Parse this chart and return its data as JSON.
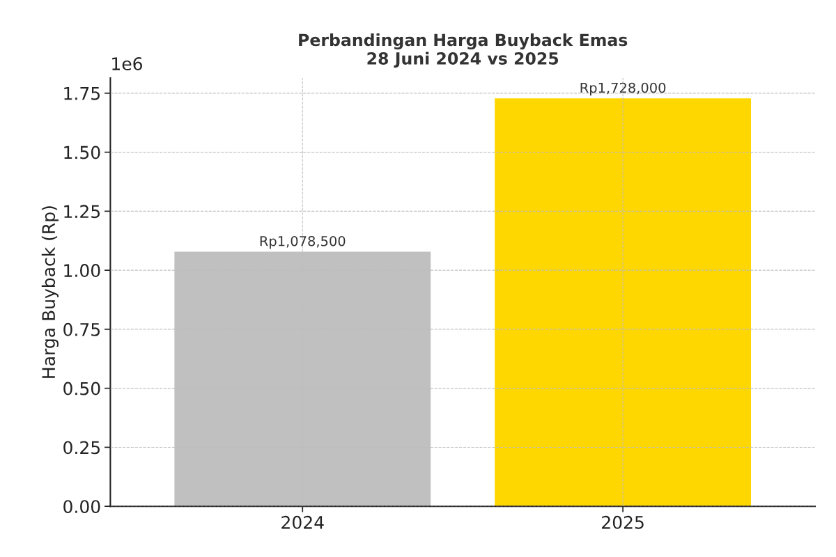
{
  "chart_data": {
    "type": "bar",
    "title": "Perbandingan Harga Buyback Emas\n28 Juni 2024 vs 2025",
    "ylabel": "Harga Buyback (Rp)",
    "categories": [
      "2024",
      "2025"
    ],
    "values": [
      1.0785,
      1.728
    ],
    "colors": [
      "#c0c0c0",
      "#ffd700"
    ],
    "value_labels": [
      "Rp1,078,500",
      "Rp1,728,000"
    ],
    "ylim": [
      0,
      1.8144
    ],
    "yticks": [
      {
        "value": 0,
        "label": "0.00"
      },
      0.25,
      {
        "value": 0.5,
        "label": "0.50"
      },
      0.75,
      {
        "value": 1,
        "label": "1.00"
      },
      1.25,
      {
        "value": 1.5,
        "label": "1.50"
      },
      1.75
    ],
    "annotations": [
      "1e6"
    ],
    "grid": true,
    "line_style": "dashed"
  }
}
